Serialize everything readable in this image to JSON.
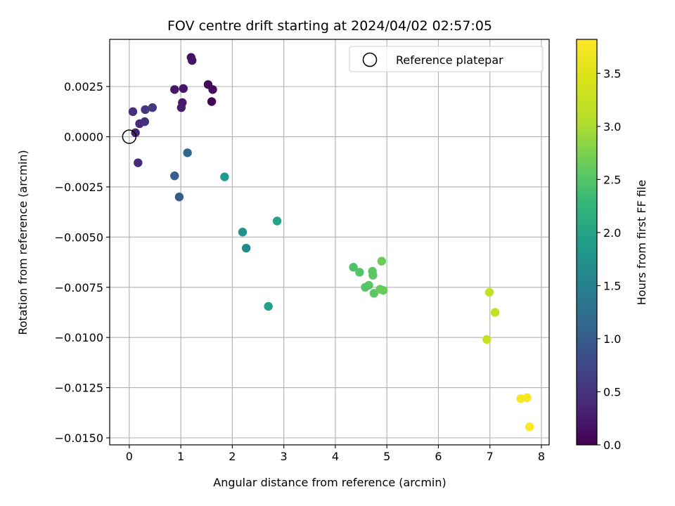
{
  "chart_data": {
    "type": "scatter",
    "title": "FOV centre drift starting at 2024/04/02 02:57:05",
    "xlabel": "Angular distance from reference (arcmin)",
    "ylabel": "Rotation from reference (arcmin)",
    "colorbar_label": "Hours from first FF file",
    "xlim": [
      -0.38,
      8.15
    ],
    "ylim": [
      -0.01535,
      0.00485
    ],
    "xticks": [
      0,
      1,
      2,
      3,
      4,
      5,
      6,
      7,
      8
    ],
    "xtick_labels": [
      "0",
      "1",
      "2",
      "3",
      "4",
      "5",
      "6",
      "7",
      "8"
    ],
    "yticks": [
      0.0025,
      0.0,
      -0.0025,
      -0.005,
      -0.0075,
      -0.01,
      -0.0125,
      -0.015
    ],
    "ytick_labels": [
      "0.0025",
      "0.0000",
      "−0.0025",
      "−0.0050",
      "−0.0075",
      "−0.0100",
      "−0.0125",
      "−0.0150"
    ],
    "colorbar_range": [
      0.0,
      3.82
    ],
    "colorbar_ticks": [
      0.0,
      0.5,
      1.0,
      1.5,
      2.0,
      2.5,
      3.0,
      3.5
    ],
    "colorbar_tick_labels": [
      "0.0",
      "0.5",
      "1.0",
      "1.5",
      "2.0",
      "2.5",
      "3.0",
      "3.5"
    ],
    "colormap": "viridis",
    "grid": true,
    "legend": {
      "position": "top-right",
      "entries": [
        "Reference platepar"
      ]
    },
    "reference_point": {
      "x": 0.0,
      "y": 0.0
    },
    "points": [
      {
        "x": 1.6,
        "y": 0.00175,
        "h": 0.03
      },
      {
        "x": 1.53,
        "y": 0.0026,
        "h": 0.08
      },
      {
        "x": 1.62,
        "y": 0.00235,
        "h": 0.1
      },
      {
        "x": 1.2,
        "y": 0.00395,
        "h": 0.15
      },
      {
        "x": 1.22,
        "y": 0.0038,
        "h": 0.18
      },
      {
        "x": 1.05,
        "y": 0.0024,
        "h": 0.2
      },
      {
        "x": 0.88,
        "y": 0.00235,
        "h": 0.22
      },
      {
        "x": 1.03,
        "y": 0.0017,
        "h": 0.25
      },
      {
        "x": 1.01,
        "y": 0.00145,
        "h": 0.28
      },
      {
        "x": 0.12,
        "y": 0.0002,
        "h": 0.33
      },
      {
        "x": 0.2,
        "y": 0.00065,
        "h": 0.38
      },
      {
        "x": 0.17,
        "y": -0.0013,
        "h": 0.42
      },
      {
        "x": 0.07,
        "y": 0.00125,
        "h": 0.45
      },
      {
        "x": 0.3,
        "y": 0.00075,
        "h": 0.5
      },
      {
        "x": 0.31,
        "y": 0.00135,
        "h": 0.55
      },
      {
        "x": 0.45,
        "y": 0.00145,
        "h": 0.6
      },
      {
        "x": 0.97,
        "y": -0.003,
        "h": 1.0
      },
      {
        "x": 0.88,
        "y": -0.00195,
        "h": 1.05
      },
      {
        "x": 1.13,
        "y": -0.0008,
        "h": 1.15
      },
      {
        "x": 2.27,
        "y": -0.00555,
        "h": 1.65
      },
      {
        "x": 2.2,
        "y": -0.00475,
        "h": 1.75
      },
      {
        "x": 1.85,
        "y": -0.002,
        "h": 1.85
      },
      {
        "x": 2.7,
        "y": -0.00845,
        "h": 1.95
      },
      {
        "x": 2.87,
        "y": -0.0042,
        "h": 2.0
      },
      {
        "x": 4.35,
        "y": -0.0065,
        "h": 2.45
      },
      {
        "x": 4.47,
        "y": -0.00675,
        "h": 2.5
      },
      {
        "x": 4.58,
        "y": -0.0075,
        "h": 2.5
      },
      {
        "x": 4.65,
        "y": -0.0074,
        "h": 2.52
      },
      {
        "x": 4.72,
        "y": -0.0067,
        "h": 2.55
      },
      {
        "x": 4.73,
        "y": -0.0069,
        "h": 2.55
      },
      {
        "x": 4.75,
        "y": -0.0078,
        "h": 2.55
      },
      {
        "x": 4.87,
        "y": -0.0076,
        "h": 2.6
      },
      {
        "x": 4.93,
        "y": -0.00765,
        "h": 2.62
      },
      {
        "x": 4.9,
        "y": -0.0062,
        "h": 2.65
      },
      {
        "x": 6.99,
        "y": -0.00775,
        "h": 3.2
      },
      {
        "x": 7.1,
        "y": -0.00875,
        "h": 3.22
      },
      {
        "x": 6.94,
        "y": -0.0101,
        "h": 3.25
      },
      {
        "x": 7.6,
        "y": -0.01305,
        "h": 3.75
      },
      {
        "x": 7.72,
        "y": -0.013,
        "h": 3.78
      },
      {
        "x": 7.77,
        "y": -0.01445,
        "h": 3.8
      }
    ]
  }
}
